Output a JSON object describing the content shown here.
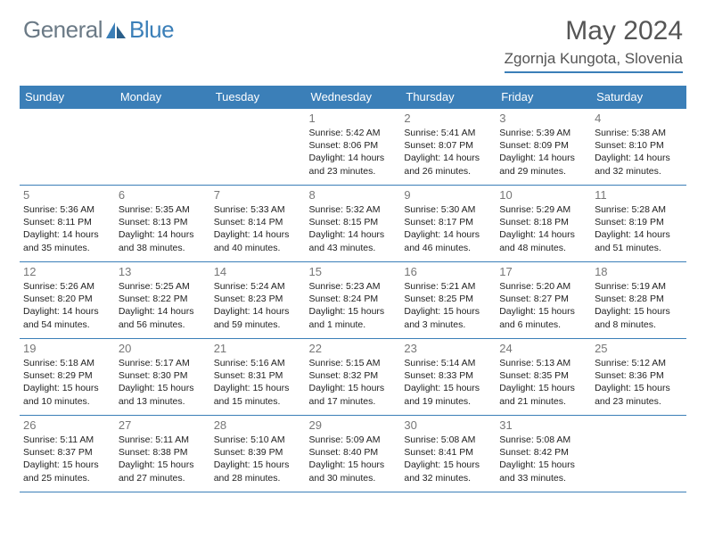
{
  "brand": {
    "part1": "General",
    "part2": "Blue"
  },
  "title": "May 2024",
  "location": "Zgornja Kungota, Slovenia",
  "colors": {
    "accent": "#3b7fb8",
    "header_text": "#ffffff",
    "day_num": "#777777",
    "info_text": "#222222",
    "brand_gray": "#6b7a86"
  },
  "weekdays": [
    "Sunday",
    "Monday",
    "Tuesday",
    "Wednesday",
    "Thursday",
    "Friday",
    "Saturday"
  ],
  "weeks": [
    [
      null,
      null,
      null,
      {
        "n": "1",
        "sr": "5:42 AM",
        "ss": "8:06 PM",
        "dl": "14 hours and 23 minutes."
      },
      {
        "n": "2",
        "sr": "5:41 AM",
        "ss": "8:07 PM",
        "dl": "14 hours and 26 minutes."
      },
      {
        "n": "3",
        "sr": "5:39 AM",
        "ss": "8:09 PM",
        "dl": "14 hours and 29 minutes."
      },
      {
        "n": "4",
        "sr": "5:38 AM",
        "ss": "8:10 PM",
        "dl": "14 hours and 32 minutes."
      }
    ],
    [
      {
        "n": "5",
        "sr": "5:36 AM",
        "ss": "8:11 PM",
        "dl": "14 hours and 35 minutes."
      },
      {
        "n": "6",
        "sr": "5:35 AM",
        "ss": "8:13 PM",
        "dl": "14 hours and 38 minutes."
      },
      {
        "n": "7",
        "sr": "5:33 AM",
        "ss": "8:14 PM",
        "dl": "14 hours and 40 minutes."
      },
      {
        "n": "8",
        "sr": "5:32 AM",
        "ss": "8:15 PM",
        "dl": "14 hours and 43 minutes."
      },
      {
        "n": "9",
        "sr": "5:30 AM",
        "ss": "8:17 PM",
        "dl": "14 hours and 46 minutes."
      },
      {
        "n": "10",
        "sr": "5:29 AM",
        "ss": "8:18 PM",
        "dl": "14 hours and 48 minutes."
      },
      {
        "n": "11",
        "sr": "5:28 AM",
        "ss": "8:19 PM",
        "dl": "14 hours and 51 minutes."
      }
    ],
    [
      {
        "n": "12",
        "sr": "5:26 AM",
        "ss": "8:20 PM",
        "dl": "14 hours and 54 minutes."
      },
      {
        "n": "13",
        "sr": "5:25 AM",
        "ss": "8:22 PM",
        "dl": "14 hours and 56 minutes."
      },
      {
        "n": "14",
        "sr": "5:24 AM",
        "ss": "8:23 PM",
        "dl": "14 hours and 59 minutes."
      },
      {
        "n": "15",
        "sr": "5:23 AM",
        "ss": "8:24 PM",
        "dl": "15 hours and 1 minute."
      },
      {
        "n": "16",
        "sr": "5:21 AM",
        "ss": "8:25 PM",
        "dl": "15 hours and 3 minutes."
      },
      {
        "n": "17",
        "sr": "5:20 AM",
        "ss": "8:27 PM",
        "dl": "15 hours and 6 minutes."
      },
      {
        "n": "18",
        "sr": "5:19 AM",
        "ss": "8:28 PM",
        "dl": "15 hours and 8 minutes."
      }
    ],
    [
      {
        "n": "19",
        "sr": "5:18 AM",
        "ss": "8:29 PM",
        "dl": "15 hours and 10 minutes."
      },
      {
        "n": "20",
        "sr": "5:17 AM",
        "ss": "8:30 PM",
        "dl": "15 hours and 13 minutes."
      },
      {
        "n": "21",
        "sr": "5:16 AM",
        "ss": "8:31 PM",
        "dl": "15 hours and 15 minutes."
      },
      {
        "n": "22",
        "sr": "5:15 AM",
        "ss": "8:32 PM",
        "dl": "15 hours and 17 minutes."
      },
      {
        "n": "23",
        "sr": "5:14 AM",
        "ss": "8:33 PM",
        "dl": "15 hours and 19 minutes."
      },
      {
        "n": "24",
        "sr": "5:13 AM",
        "ss": "8:35 PM",
        "dl": "15 hours and 21 minutes."
      },
      {
        "n": "25",
        "sr": "5:12 AM",
        "ss": "8:36 PM",
        "dl": "15 hours and 23 minutes."
      }
    ],
    [
      {
        "n": "26",
        "sr": "5:11 AM",
        "ss": "8:37 PM",
        "dl": "15 hours and 25 minutes."
      },
      {
        "n": "27",
        "sr": "5:11 AM",
        "ss": "8:38 PM",
        "dl": "15 hours and 27 minutes."
      },
      {
        "n": "28",
        "sr": "5:10 AM",
        "ss": "8:39 PM",
        "dl": "15 hours and 28 minutes."
      },
      {
        "n": "29",
        "sr": "5:09 AM",
        "ss": "8:40 PM",
        "dl": "15 hours and 30 minutes."
      },
      {
        "n": "30",
        "sr": "5:08 AM",
        "ss": "8:41 PM",
        "dl": "15 hours and 32 minutes."
      },
      {
        "n": "31",
        "sr": "5:08 AM",
        "ss": "8:42 PM",
        "dl": "15 hours and 33 minutes."
      },
      null
    ]
  ]
}
